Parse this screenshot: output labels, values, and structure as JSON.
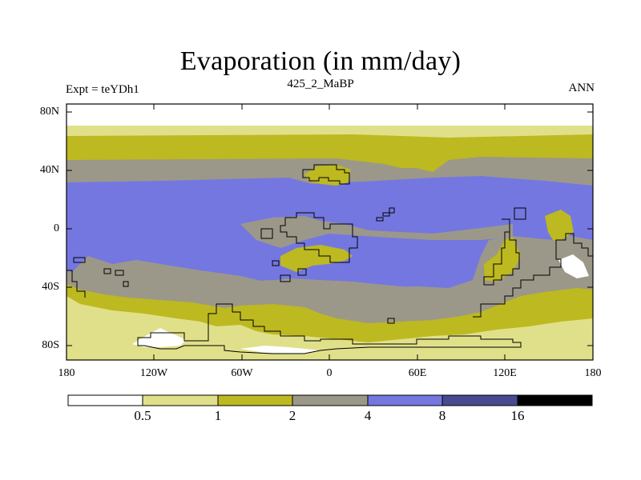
{
  "title": "Evaporation (in mm/day)",
  "subtitle_left": "Expt = teYDh1",
  "subtitle_center": "425_2_MaBP",
  "subtitle_right": "ANN",
  "y_axis": {
    "ticks": [
      "80N",
      "40N",
      "0",
      "40S",
      "80S"
    ]
  },
  "x_axis": {
    "ticks": [
      "180",
      "120W",
      "60W",
      "0",
      "60E",
      "120E",
      "180"
    ]
  },
  "colorbar": {
    "labels": [
      "0.5",
      "1",
      "2",
      "4",
      "8",
      "16"
    ],
    "colors": [
      "#ffffff",
      "#e0e08a",
      "#bdb920",
      "#9c9889",
      "#7577e0",
      "#484a8f",
      "#000000"
    ]
  },
  "colors": {
    "white": "#ffffff",
    "pale_yellow": "#e0e08a",
    "olive": "#bdb920",
    "gray": "#9c9889",
    "blue": "#7577e0",
    "dark_blue": "#484a8f"
  }
}
